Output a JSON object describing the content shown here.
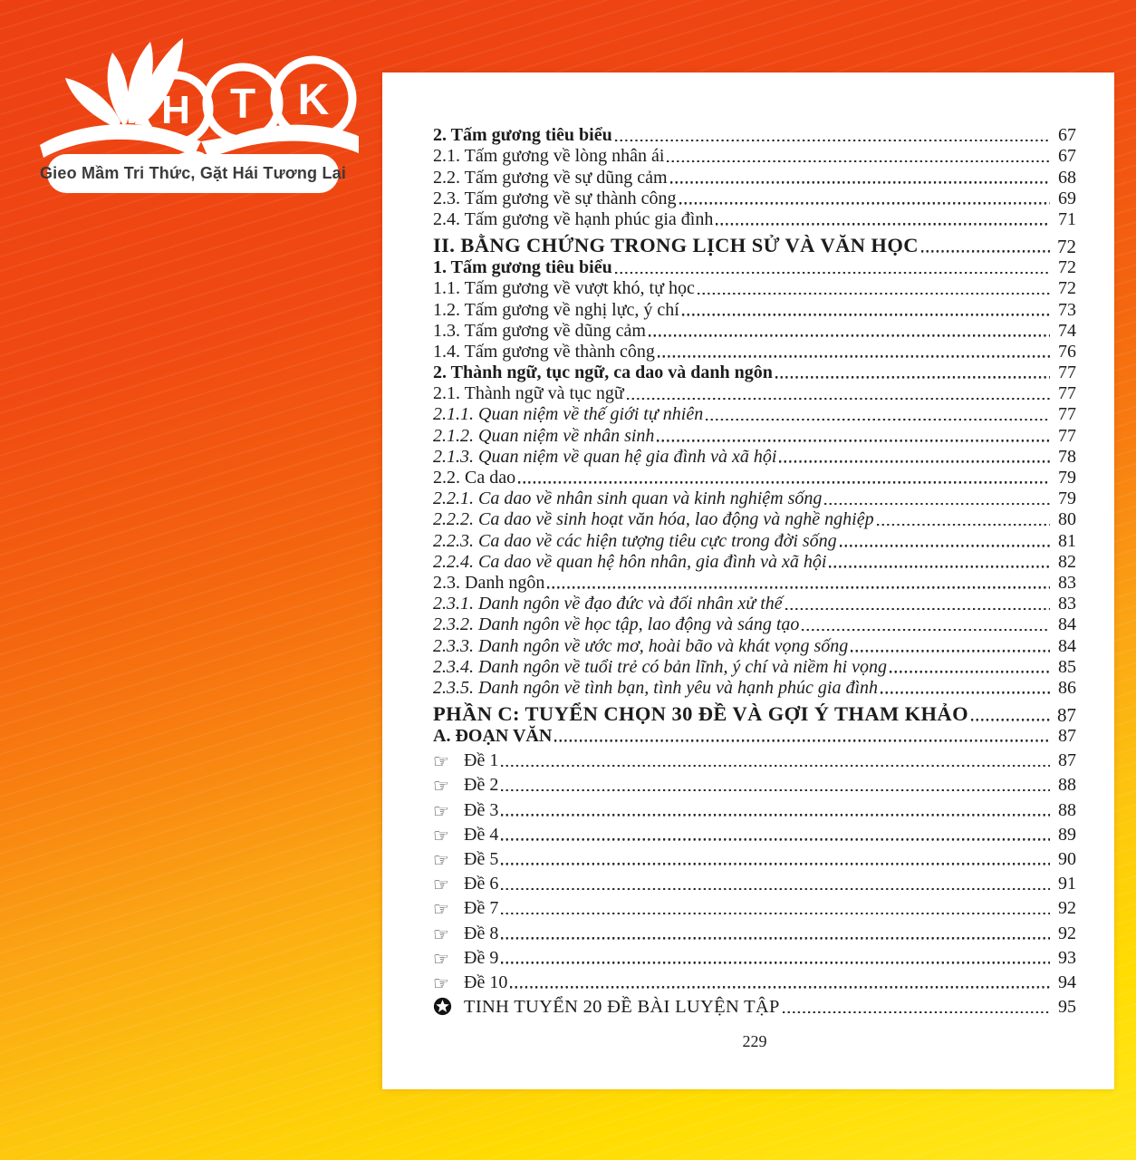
{
  "brand": {
    "colors": {
      "bg_top_red": "#ec4013",
      "bg_mid_orange": "#f87d10",
      "bg_bottom_yellow": "#ffe81f",
      "logo_white": "#ffffff",
      "tagline_text": "#3a3a3a",
      "body_text": "#1c1c1c"
    },
    "logo": {
      "letters": [
        "H",
        "T",
        "K"
      ],
      "tagline": "Gieo Mầm Tri Thức, Gặt Hái Tương Lai"
    }
  },
  "icons": {
    "pointing_hand": "☞",
    "star_circle": "✪"
  },
  "page": {
    "toc": [
      {
        "label": "2. Tấm gương tiêu biểu",
        "page": "67",
        "style": "bold"
      },
      {
        "label": "2.1. Tấm gương về lòng nhân ái",
        "page": "67",
        "style": "normal"
      },
      {
        "label": "2.2. Tấm gương về sự dũng cảm",
        "page": "68",
        "style": "normal"
      },
      {
        "label": "2.3. Tấm gương về sự thành công",
        "page": "69",
        "style": "normal"
      },
      {
        "label": "2.4. Tấm gương về hạnh phúc gia đình",
        "page": "71",
        "style": "normal"
      },
      {
        "label": "II. BẰNG CHỨNG TRONG LỊCH SỬ VÀ VĂN HỌC",
        "page": "72",
        "style": "heading"
      },
      {
        "label": "1. Tấm gương tiêu biểu",
        "page": "72",
        "style": "bold"
      },
      {
        "label": "1.1. Tấm gương về vượt khó, tự học",
        "page": "72",
        "style": "normal"
      },
      {
        "label": "1.2. Tấm gương về nghị lực, ý chí",
        "page": "73",
        "style": "normal"
      },
      {
        "label": "1.3. Tấm gương về dũng cảm",
        "page": "74",
        "style": "normal"
      },
      {
        "label": "1.4. Tấm gương về thành công",
        "page": "76",
        "style": "normal"
      },
      {
        "label": "2. Thành ngữ, tục ngữ, ca dao và danh ngôn",
        "page": "77",
        "style": "bold"
      },
      {
        "label": "2.1. Thành ngữ và tục ngữ",
        "page": "77",
        "style": "normal"
      },
      {
        "label": "2.1.1. Quan niệm về thế giới tự nhiên",
        "page": "77",
        "style": "italic"
      },
      {
        "label": "2.1.2. Quan niệm về nhân sinh",
        "page": "77",
        "style": "italic"
      },
      {
        "label": "2.1.3. Quan niệm về quan hệ gia đình và xã hội",
        "page": "78",
        "style": "italic"
      },
      {
        "label": "2.2. Ca dao",
        "page": "79",
        "style": "normal"
      },
      {
        "label": "2.2.1. Ca dao về nhân sinh quan và kinh nghiệm sống",
        "page": "79",
        "style": "italic"
      },
      {
        "label": "2.2.2. Ca dao về sinh hoạt văn hóa, lao động và nghề nghiệp",
        "page": "80",
        "style": "italic"
      },
      {
        "label": "2.2.3. Ca dao về các hiện tượng tiêu cực trong đời sống",
        "page": "81",
        "style": "italic"
      },
      {
        "label": "2.2.4. Ca dao về quan hệ hôn nhân, gia đình và xã hội",
        "page": "82",
        "style": "italic"
      },
      {
        "label": "2.3. Danh ngôn",
        "page": "83",
        "style": "normal"
      },
      {
        "label": "2.3.1. Danh ngôn về đạo đức và đối nhân xử thế",
        "page": "83",
        "style": "italic"
      },
      {
        "label": "2.3.2. Danh ngôn về học tập, lao động và sáng tạo",
        "page": "84",
        "style": "italic"
      },
      {
        "label": "2.3.3. Danh ngôn về ước mơ, hoài bão và khát vọng sống",
        "page": "84",
        "style": "italic"
      },
      {
        "label": "2.3.4. Danh ngôn về tuổi trẻ có bản lĩnh, ý chí và niềm hi vọng",
        "page": "85",
        "style": "italic"
      },
      {
        "label": "2.3.5. Danh ngôn về tình bạn, tình yêu và hạnh phúc gia đình",
        "page": "86",
        "style": "italic"
      },
      {
        "label": "PHẦN C: TUYỂN CHỌN 30 ĐỀ VÀ GỢI Ý THAM KHẢO",
        "page": "87",
        "style": "heading"
      },
      {
        "label": "A. ĐOẠN VĂN",
        "page": "87",
        "style": "bold"
      },
      {
        "label": "Đề 1",
        "page": "87",
        "style": "de",
        "icon": "pointing_hand"
      },
      {
        "label": "Đề 2",
        "page": "88",
        "style": "de",
        "icon": "pointing_hand"
      },
      {
        "label": "Đề 3",
        "page": "88",
        "style": "de",
        "icon": "pointing_hand"
      },
      {
        "label": "Đề 4",
        "page": "89",
        "style": "de",
        "icon": "pointing_hand"
      },
      {
        "label": "Đề 5",
        "page": "90",
        "style": "de",
        "icon": "pointing_hand"
      },
      {
        "label": "Đề 6",
        "page": "91",
        "style": "de",
        "icon": "pointing_hand"
      },
      {
        "label": "Đề 7",
        "page": "92",
        "style": "de",
        "icon": "pointing_hand"
      },
      {
        "label": "Đề 8",
        "page": "92",
        "style": "de",
        "icon": "pointing_hand"
      },
      {
        "label": "Đề 9",
        "page": "93",
        "style": "de",
        "icon": "pointing_hand"
      },
      {
        "label": "Đề 10",
        "page": "94",
        "style": "de",
        "icon": "pointing_hand"
      },
      {
        "label": "TINH TUYỂN 20 ĐỀ BÀI LUYỆN TẬP",
        "page": "95",
        "style": "star",
        "icon": "star_circle"
      }
    ],
    "footer_page_number": "229"
  }
}
